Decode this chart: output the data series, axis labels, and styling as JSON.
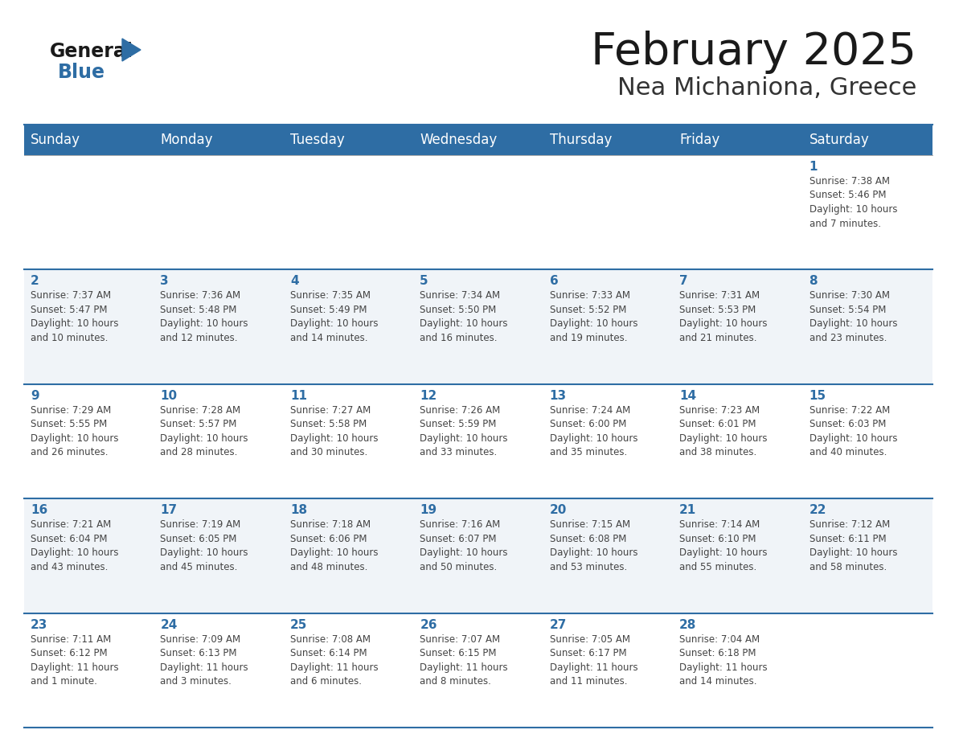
{
  "title": "February 2025",
  "subtitle": "Nea Michaniona, Greece",
  "header_bg": "#2E6DA4",
  "header_text_color": "#FFFFFF",
  "row_bg_even": "#FFFFFF",
  "row_bg_odd": "#F0F4F8",
  "border_color": "#2E6DA4",
  "thin_line_color": "#AAAAAA",
  "text_color": "#444444",
  "day_num_color": "#2E6DA4",
  "day_headers": [
    "Sunday",
    "Monday",
    "Tuesday",
    "Wednesday",
    "Thursday",
    "Friday",
    "Saturday"
  ],
  "logo_general_color": "#1A1A1A",
  "logo_blue_color": "#2E6DA4",
  "title_fontsize": 38,
  "subtitle_fontsize": 22,
  "header_fontsize": 12,
  "day_num_fontsize": 11,
  "info_fontsize": 8.5,
  "weeks": [
    [
      {
        "day": "",
        "info": ""
      },
      {
        "day": "",
        "info": ""
      },
      {
        "day": "",
        "info": ""
      },
      {
        "day": "",
        "info": ""
      },
      {
        "day": "",
        "info": ""
      },
      {
        "day": "",
        "info": ""
      },
      {
        "day": "1",
        "info": "Sunrise: 7:38 AM\nSunset: 5:46 PM\nDaylight: 10 hours\nand 7 minutes."
      }
    ],
    [
      {
        "day": "2",
        "info": "Sunrise: 7:37 AM\nSunset: 5:47 PM\nDaylight: 10 hours\nand 10 minutes."
      },
      {
        "day": "3",
        "info": "Sunrise: 7:36 AM\nSunset: 5:48 PM\nDaylight: 10 hours\nand 12 minutes."
      },
      {
        "day": "4",
        "info": "Sunrise: 7:35 AM\nSunset: 5:49 PM\nDaylight: 10 hours\nand 14 minutes."
      },
      {
        "day": "5",
        "info": "Sunrise: 7:34 AM\nSunset: 5:50 PM\nDaylight: 10 hours\nand 16 minutes."
      },
      {
        "day": "6",
        "info": "Sunrise: 7:33 AM\nSunset: 5:52 PM\nDaylight: 10 hours\nand 19 minutes."
      },
      {
        "day": "7",
        "info": "Sunrise: 7:31 AM\nSunset: 5:53 PM\nDaylight: 10 hours\nand 21 minutes."
      },
      {
        "day": "8",
        "info": "Sunrise: 7:30 AM\nSunset: 5:54 PM\nDaylight: 10 hours\nand 23 minutes."
      }
    ],
    [
      {
        "day": "9",
        "info": "Sunrise: 7:29 AM\nSunset: 5:55 PM\nDaylight: 10 hours\nand 26 minutes."
      },
      {
        "day": "10",
        "info": "Sunrise: 7:28 AM\nSunset: 5:57 PM\nDaylight: 10 hours\nand 28 minutes."
      },
      {
        "day": "11",
        "info": "Sunrise: 7:27 AM\nSunset: 5:58 PM\nDaylight: 10 hours\nand 30 minutes."
      },
      {
        "day": "12",
        "info": "Sunrise: 7:26 AM\nSunset: 5:59 PM\nDaylight: 10 hours\nand 33 minutes."
      },
      {
        "day": "13",
        "info": "Sunrise: 7:24 AM\nSunset: 6:00 PM\nDaylight: 10 hours\nand 35 minutes."
      },
      {
        "day": "14",
        "info": "Sunrise: 7:23 AM\nSunset: 6:01 PM\nDaylight: 10 hours\nand 38 minutes."
      },
      {
        "day": "15",
        "info": "Sunrise: 7:22 AM\nSunset: 6:03 PM\nDaylight: 10 hours\nand 40 minutes."
      }
    ],
    [
      {
        "day": "16",
        "info": "Sunrise: 7:21 AM\nSunset: 6:04 PM\nDaylight: 10 hours\nand 43 minutes."
      },
      {
        "day": "17",
        "info": "Sunrise: 7:19 AM\nSunset: 6:05 PM\nDaylight: 10 hours\nand 45 minutes."
      },
      {
        "day": "18",
        "info": "Sunrise: 7:18 AM\nSunset: 6:06 PM\nDaylight: 10 hours\nand 48 minutes."
      },
      {
        "day": "19",
        "info": "Sunrise: 7:16 AM\nSunset: 6:07 PM\nDaylight: 10 hours\nand 50 minutes."
      },
      {
        "day": "20",
        "info": "Sunrise: 7:15 AM\nSunset: 6:08 PM\nDaylight: 10 hours\nand 53 minutes."
      },
      {
        "day": "21",
        "info": "Sunrise: 7:14 AM\nSunset: 6:10 PM\nDaylight: 10 hours\nand 55 minutes."
      },
      {
        "day": "22",
        "info": "Sunrise: 7:12 AM\nSunset: 6:11 PM\nDaylight: 10 hours\nand 58 minutes."
      }
    ],
    [
      {
        "day": "23",
        "info": "Sunrise: 7:11 AM\nSunset: 6:12 PM\nDaylight: 11 hours\nand 1 minute."
      },
      {
        "day": "24",
        "info": "Sunrise: 7:09 AM\nSunset: 6:13 PM\nDaylight: 11 hours\nand 3 minutes."
      },
      {
        "day": "25",
        "info": "Sunrise: 7:08 AM\nSunset: 6:14 PM\nDaylight: 11 hours\nand 6 minutes."
      },
      {
        "day": "26",
        "info": "Sunrise: 7:07 AM\nSunset: 6:15 PM\nDaylight: 11 hours\nand 8 minutes."
      },
      {
        "day": "27",
        "info": "Sunrise: 7:05 AM\nSunset: 6:17 PM\nDaylight: 11 hours\nand 11 minutes."
      },
      {
        "day": "28",
        "info": "Sunrise: 7:04 AM\nSunset: 6:18 PM\nDaylight: 11 hours\nand 14 minutes."
      },
      {
        "day": "",
        "info": ""
      }
    ]
  ]
}
